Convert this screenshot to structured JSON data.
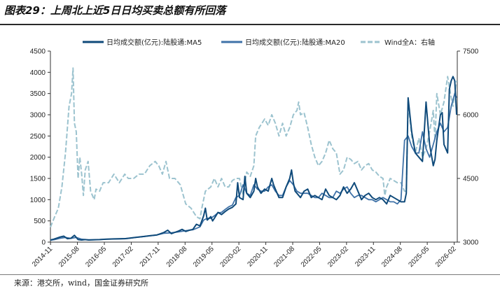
{
  "figure": {
    "title": "图表29：上周北上近5日日均买卖总额有所回落",
    "source": "来源：港交所，wind，国金证券研究所"
  },
  "chart_data": {
    "type": "line",
    "title": "图表29：上周北上近5日日均买卖总额有所回落",
    "xlabel": "",
    "ylabel": "",
    "y_left": {
      "lim": [
        0,
        4500
      ],
      "ticks": [
        "0",
        "500",
        "1000",
        "1500",
        "2000",
        "2500",
        "3000",
        "3500",
        "4000",
        "4500"
      ]
    },
    "y_right": {
      "lim": [
        3000,
        7500
      ],
      "ticks": [
        "3000",
        "4500",
        "6000",
        "7500"
      ]
    },
    "x_start": 2014.83,
    "x_end": 2026.17,
    "x_ticks": [
      {
        "label": "2014-11",
        "t": 2014.833
      },
      {
        "label": "2015-08",
        "t": 2015.583
      },
      {
        "label": "2016-05",
        "t": 2016.333
      },
      {
        "label": "2017-02",
        "t": 2017.083
      },
      {
        "label": "2017-11",
        "t": 2017.833
      },
      {
        "label": "2018-08",
        "t": 2018.583
      },
      {
        "label": "2019-05",
        "t": 2019.333
      },
      {
        "label": "2020-02",
        "t": 2020.083
      },
      {
        "label": "2020-11",
        "t": 2020.833
      },
      {
        "label": "2021-08",
        "t": 2021.583
      },
      {
        "label": "2022-05",
        "t": 2022.333
      },
      {
        "label": "2023-02",
        "t": 2023.083
      },
      {
        "label": "2023-11",
        "t": 2023.833
      },
      {
        "label": "2024-08",
        "t": 2024.583
      },
      {
        "label": "2025-05",
        "t": 2025.333
      },
      {
        "label": "2026-02",
        "t": 2026.083
      }
    ],
    "legend_position": "top",
    "series": [
      {
        "name": "日均成交额(亿元):陆股通:MA5",
        "axis": "left",
        "color": "#0f4a7a",
        "style": "solid",
        "x": [
          2014.83,
          2014.92,
          2015.0,
          2015.1,
          2015.2,
          2015.3,
          2015.4,
          2015.5,
          2015.6,
          2015.7,
          2015.8,
          2015.9,
          2016.0,
          2016.2,
          2016.4,
          2016.6,
          2016.8,
          2016.9,
          2017.0,
          2017.2,
          2017.4,
          2017.6,
          2017.8,
          2017.9,
          2018.0,
          2018.1,
          2018.2,
          2018.3,
          2018.4,
          2018.5,
          2018.6,
          2018.7,
          2018.8,
          2018.9,
          2019.0,
          2019.1,
          2019.15,
          2019.2,
          2019.3,
          2019.35,
          2019.4,
          2019.5,
          2019.6,
          2019.7,
          2019.8,
          2019.9,
          2020.0,
          2020.05,
          2020.1,
          2020.2,
          2020.25,
          2020.3,
          2020.4,
          2020.5,
          2020.55,
          2020.6,
          2020.7,
          2020.8,
          2020.9,
          2021.0,
          2021.05,
          2021.1,
          2021.2,
          2021.3,
          2021.4,
          2021.5,
          2021.55,
          2021.6,
          2021.65,
          2021.7,
          2021.8,
          2021.9,
          2022.0,
          2022.1,
          2022.2,
          2022.3,
          2022.4,
          2022.5,
          2022.6,
          2022.7,
          2022.8,
          2022.9,
          2023.0,
          2023.1,
          2023.2,
          2023.3,
          2023.4,
          2023.5,
          2023.6,
          2023.7,
          2023.8,
          2023.9,
          2024.0,
          2024.1,
          2024.2,
          2024.3,
          2024.4,
          2024.5,
          2024.6,
          2024.7,
          2024.75,
          2024.8,
          2024.9,
          2025.0,
          2025.1,
          2025.2,
          2025.3,
          2025.4,
          2025.5,
          2025.55,
          2025.6,
          2025.7,
          2025.75,
          2025.8,
          2025.9,
          2025.95,
          2026.0,
          2026.05,
          2026.1,
          2026.15
        ],
        "values": [
          50,
          70,
          90,
          120,
          140,
          80,
          90,
          160,
          60,
          50,
          60,
          50,
          55,
          60,
          70,
          75,
          80,
          80,
          90,
          110,
          130,
          150,
          170,
          200,
          230,
          280,
          200,
          230,
          260,
          300,
          250,
          280,
          300,
          420,
          380,
          620,
          800,
          520,
          600,
          500,
          560,
          700,
          650,
          720,
          780,
          820,
          900,
          1400,
          1050,
          1000,
          1550,
          1150,
          1050,
          1200,
          1500,
          1300,
          1150,
          1250,
          1200,
          1500,
          1350,
          1250,
          1050,
          1050,
          1300,
          1500,
          1700,
          1400,
          1200,
          1150,
          1050,
          1200,
          1250,
          1050,
          1100,
          1050,
          1000,
          1250,
          1100,
          1050,
          1000,
          1100,
          1300,
          1150,
          1250,
          1400,
          1200,
          1000,
          1100,
          1150,
          1050,
          1000,
          1050,
          1000,
          900,
          1100,
          1050,
          1000,
          950,
          950,
          1150,
          3400,
          2600,
          2100,
          2000,
          1900,
          3300,
          2300,
          1800,
          1950,
          2400,
          3000,
          3050,
          2300,
          2100,
          3600,
          3800,
          3900,
          3800,
          3000
        ]
      },
      {
        "name": "日均成交额(亿元):陆股通:MA20",
        "axis": "left",
        "color": "#3f72a8",
        "style": "solid",
        "x": [
          2014.83,
          2014.95,
          2015.1,
          2015.25,
          2015.4,
          2015.55,
          2015.7,
          2015.85,
          2016.0,
          2016.2,
          2016.4,
          2016.6,
          2016.8,
          2017.0,
          2017.2,
          2017.4,
          2017.6,
          2017.8,
          2018.0,
          2018.2,
          2018.4,
          2018.6,
          2018.8,
          2019.0,
          2019.1,
          2019.2,
          2019.3,
          2019.4,
          2019.5,
          2019.6,
          2019.7,
          2019.8,
          2019.9,
          2020.0,
          2020.1,
          2020.2,
          2020.3,
          2020.4,
          2020.5,
          2020.6,
          2020.7,
          2020.8,
          2020.9,
          2021.0,
          2021.1,
          2021.2,
          2021.3,
          2021.4,
          2021.5,
          2021.6,
          2021.7,
          2021.8,
          2021.9,
          2022.0,
          2022.1,
          2022.2,
          2022.3,
          2022.4,
          2022.5,
          2022.6,
          2022.7,
          2022.8,
          2022.9,
          2023.0,
          2023.1,
          2023.2,
          2023.3,
          2023.4,
          2023.5,
          2023.6,
          2023.7,
          2023.8,
          2023.9,
          2024.0,
          2024.1,
          2024.2,
          2024.3,
          2024.4,
          2024.5,
          2024.6,
          2024.7,
          2024.8,
          2024.9,
          2025.0,
          2025.1,
          2025.2,
          2025.3,
          2025.4,
          2025.5,
          2025.6,
          2025.7,
          2025.8,
          2025.9,
          2026.0,
          2026.1,
          2026.15
        ],
        "values": [
          45,
          60,
          90,
          110,
          85,
          110,
          70,
          55,
          55,
          60,
          68,
          72,
          78,
          88,
          108,
          128,
          148,
          168,
          210,
          220,
          240,
          270,
          290,
          360,
          520,
          560,
          560,
          620,
          690,
          700,
          770,
          830,
          870,
          1050,
          1100,
          1350,
          1150,
          1100,
          1350,
          1250,
          1200,
          1200,
          1300,
          1350,
          1200,
          1100,
          1100,
          1300,
          1450,
          1350,
          1200,
          1150,
          1150,
          1150,
          1100,
          1050,
          1050,
          1150,
          1100,
          1050,
          1050,
          1200,
          1150,
          1250,
          1300,
          1150,
          1050,
          1100,
          1100,
          1050,
          1000,
          1000,
          950,
          1000,
          1050,
          1000,
          950,
          950,
          900,
          1000,
          2400,
          2500,
          2250,
          2100,
          2100,
          2600,
          2200,
          2000,
          2300,
          2600,
          2800,
          2600,
          2700,
          3200,
          3500,
          3400
        ]
      },
      {
        "name": "Wind全A：右轴",
        "axis": "right",
        "color": "#9cc3cf",
        "style": "dashed",
        "x": [
          2014.83,
          2014.95,
          2015.05,
          2015.15,
          2015.25,
          2015.35,
          2015.42,
          2015.46,
          2015.5,
          2015.55,
          2015.6,
          2015.65,
          2015.7,
          2015.75,
          2015.8,
          2015.88,
          2015.95,
          2016.05,
          2016.1,
          2016.2,
          2016.3,
          2016.45,
          2016.6,
          2016.75,
          2016.9,
          2017.0,
          2017.15,
          2017.3,
          2017.45,
          2017.6,
          2017.75,
          2017.85,
          2017.95,
          2018.05,
          2018.15,
          2018.3,
          2018.45,
          2018.6,
          2018.75,
          2018.9,
          2019.0,
          2019.05,
          2019.15,
          2019.3,
          2019.4,
          2019.5,
          2019.6,
          2019.7,
          2019.8,
          2019.9,
          2020.0,
          2020.1,
          2020.2,
          2020.3,
          2020.4,
          2020.5,
          2020.55,
          2020.65,
          2020.8,
          2020.9,
          2021.0,
          2021.1,
          2021.2,
          2021.3,
          2021.4,
          2021.5,
          2021.6,
          2021.7,
          2021.75,
          2021.8,
          2021.9,
          2022.0,
          2022.1,
          2022.2,
          2022.3,
          2022.4,
          2022.5,
          2022.6,
          2022.7,
          2022.8,
          2022.9,
          2023.0,
          2023.1,
          2023.2,
          2023.3,
          2023.4,
          2023.5,
          2023.6,
          2023.7,
          2023.8,
          2023.9,
          2024.0,
          2024.1,
          2024.15,
          2024.2,
          2024.3,
          2024.4,
          2024.5,
          2024.6,
          2024.7,
          2024.75,
          2024.8,
          2024.9,
          2025.0,
          2025.1,
          2025.2,
          2025.3,
          2025.4,
          2025.5,
          2025.55,
          2025.6,
          2025.7,
          2025.8,
          2025.9,
          2026.0,
          2026.05,
          2026.1,
          2026.15
        ],
        "values": [
          3350,
          3600,
          3800,
          4300,
          5100,
          6200,
          6500,
          7100,
          5800,
          5600,
          4500,
          5000,
          4600,
          4100,
          4700,
          4900,
          4200,
          4000,
          4250,
          4200,
          4400,
          4400,
          4600,
          4400,
          4600,
          4500,
          4500,
          4600,
          4600,
          4800,
          4900,
          4800,
          4600,
          4900,
          4500,
          4500,
          4350,
          3900,
          3800,
          3600,
          3550,
          3800,
          4200,
          4300,
          4500,
          4300,
          4500,
          4300,
          4300,
          4450,
          4500,
          4500,
          4100,
          4650,
          4550,
          4800,
          5500,
          5700,
          5900,
          5750,
          6000,
          5800,
          5500,
          5800,
          5500,
          5700,
          6000,
          6100,
          6300,
          6000,
          6050,
          5700,
          5300,
          5000,
          4800,
          4900,
          5100,
          5400,
          5200,
          5100,
          4600,
          4700,
          5000,
          4950,
          4850,
          4900,
          4700,
          4800,
          4850,
          4700,
          4650,
          4550,
          4500,
          4100,
          4300,
          4500,
          4450,
          4400,
          4400,
          4200,
          4200,
          6300,
          5500,
          5100,
          5450,
          5000,
          5200,
          5600,
          6100,
          5400,
          6500,
          6000,
          6300,
          6900,
          6400,
          6200,
          6500,
          6800
        ]
      }
    ]
  }
}
